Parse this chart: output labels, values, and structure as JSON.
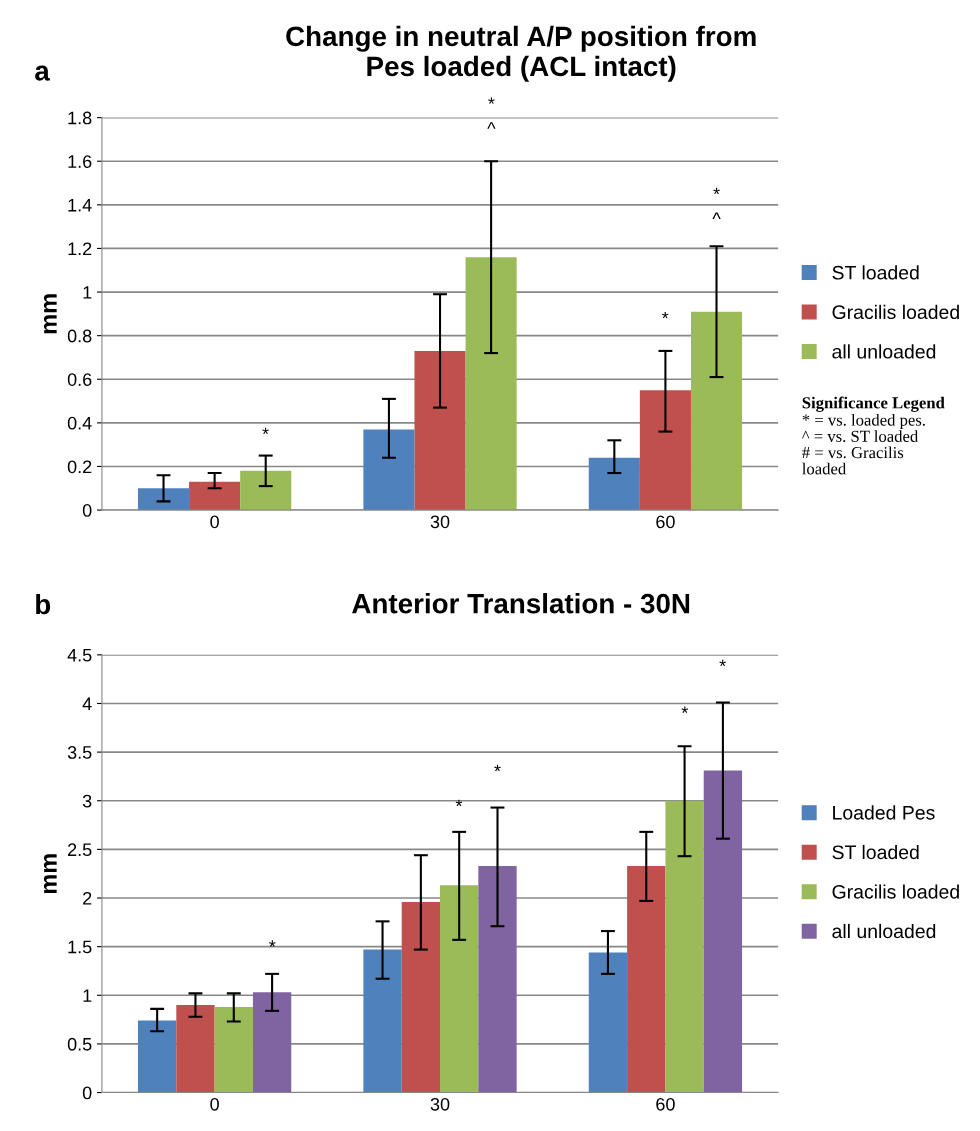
{
  "chart_data": [
    {
      "type": "bar",
      "title": "Change in neutral A/P position from\nPes loaded (ACL intact)",
      "ylabel": "mm",
      "categories": [
        "0",
        "30",
        "60"
      ],
      "series": [
        {
          "name": "ST loaded",
          "color": "#4f81bd",
          "values": [
            0.1,
            0.37,
            0.24
          ],
          "errors": [
            [
              0.04,
              0.16
            ],
            [
              0.24,
              0.51
            ],
            [
              0.17,
              0.32
            ]
          ]
        },
        {
          "name": "Gracilis loaded",
          "color": "#c0504d",
          "values": [
            0.13,
            0.73,
            0.55
          ],
          "errors": [
            [
              0.1,
              0.17
            ],
            [
              0.47,
              0.99
            ],
            [
              0.36,
              0.73
            ]
          ]
        },
        {
          "name": "all unloaded",
          "color": "#9bbb59",
          "values": [
            0.18,
            1.16,
            0.91
          ],
          "errors": [
            [
              0.11,
              0.25
            ],
            [
              0.72,
              1.6
            ],
            [
              0.61,
              1.21
            ]
          ]
        }
      ],
      "ylim": [
        0,
        1.8
      ],
      "yticks": [
        0,
        0.2,
        0.4,
        0.6,
        0.8,
        1,
        1.2,
        1.4,
        1.6,
        1.8
      ],
      "grid": "y",
      "legend": "right",
      "annotations": [
        "a",
        "Significance Legend",
        "* = vs. loaded pes.\n^ = vs. ST loaded\n# = vs. Gracilis\nloaded",
        "*",
        "*\n^",
        "*",
        "*\n^"
      ]
    },
    {
      "type": "bar",
      "title": "Anterior Translation - 30N",
      "ylabel": "mm",
      "categories": [
        "0",
        "30",
        "60"
      ],
      "series": [
        {
          "name": "Loaded Pes",
          "color": "#4f81bd",
          "values": [
            0.74,
            1.47,
            1.44
          ],
          "errors": [
            [
              0.63,
              0.86
            ],
            [
              1.17,
              1.76
            ],
            [
              1.22,
              1.66
            ]
          ]
        },
        {
          "name": "ST loaded",
          "color": "#c0504d",
          "values": [
            0.9,
            1.96,
            2.33
          ],
          "errors": [
            [
              0.78,
              1.02
            ],
            [
              1.47,
              2.44
            ],
            [
              1.97,
              2.68
            ]
          ]
        },
        {
          "name": "Gracilis loaded",
          "color": "#9bbb59",
          "values": [
            0.88,
            2.13,
            3.0
          ],
          "errors": [
            [
              0.73,
              1.02
            ],
            [
              1.57,
              2.68
            ],
            [
              2.43,
              3.56
            ]
          ]
        },
        {
          "name": "all unloaded",
          "color": "#8064a2",
          "values": [
            1.03,
            2.33,
            3.31
          ],
          "errors": [
            [
              0.84,
              1.22
            ],
            [
              1.71,
              2.93
            ],
            [
              2.61,
              4.01
            ]
          ]
        }
      ],
      "ylim": [
        0,
        4.5
      ],
      "yticks": [
        0,
        0.5,
        1,
        1.5,
        2,
        2.5,
        3,
        3.5,
        4,
        4.5
      ],
      "grid": "y",
      "legend": "right",
      "annotations": [
        "b",
        "*",
        "*",
        "*",
        "*",
        "*"
      ]
    }
  ]
}
